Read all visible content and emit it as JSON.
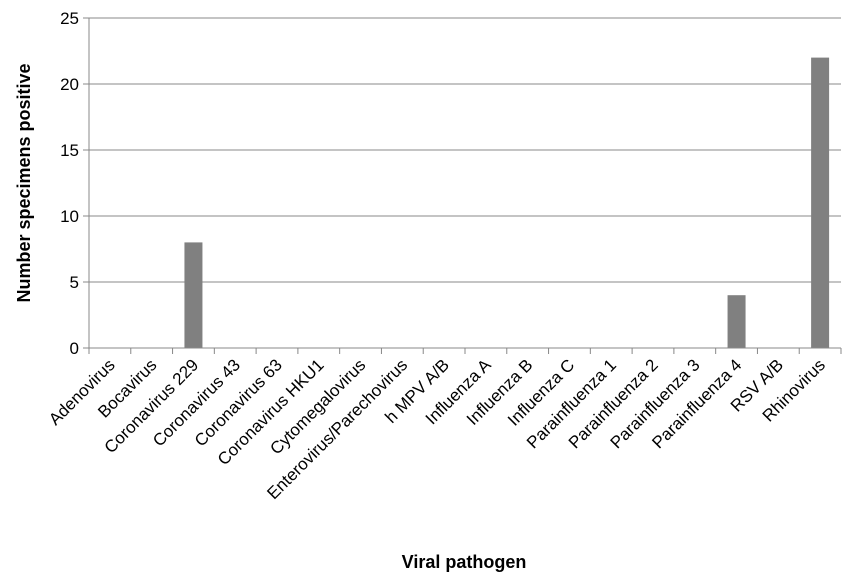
{
  "chart_data": {
    "type": "bar",
    "title": "",
    "xlabel": "Viral pathogen",
    "ylabel": "Number specimens positive",
    "categories": [
      "Adenovirus",
      "Bocavirus",
      "Coronavirus 229",
      "Coronavirus 43",
      "Coronavirus 63",
      "Coronavirus HKU1",
      "Cytomegalovirus",
      "Enterovirus/Parechovirus",
      "h MPV A/B",
      "Influenza A",
      "Influenza B",
      "Influenza C",
      "Parainfluenza 1",
      "Parainfluenza 2",
      "Parainfluenza 3",
      "Parainfluenza 4",
      "RSV A/B",
      "Rhinovirus"
    ],
    "values": [
      0,
      0,
      8,
      0,
      0,
      0,
      0,
      0,
      0,
      0,
      0,
      0,
      0,
      0,
      0,
      4,
      0,
      22
    ],
    "ylim": [
      0,
      25
    ],
    "yticks": [
      0,
      5,
      10,
      15,
      20,
      25
    ],
    "grid": true,
    "bar_color": "#808080",
    "grid_color": "#888888"
  }
}
